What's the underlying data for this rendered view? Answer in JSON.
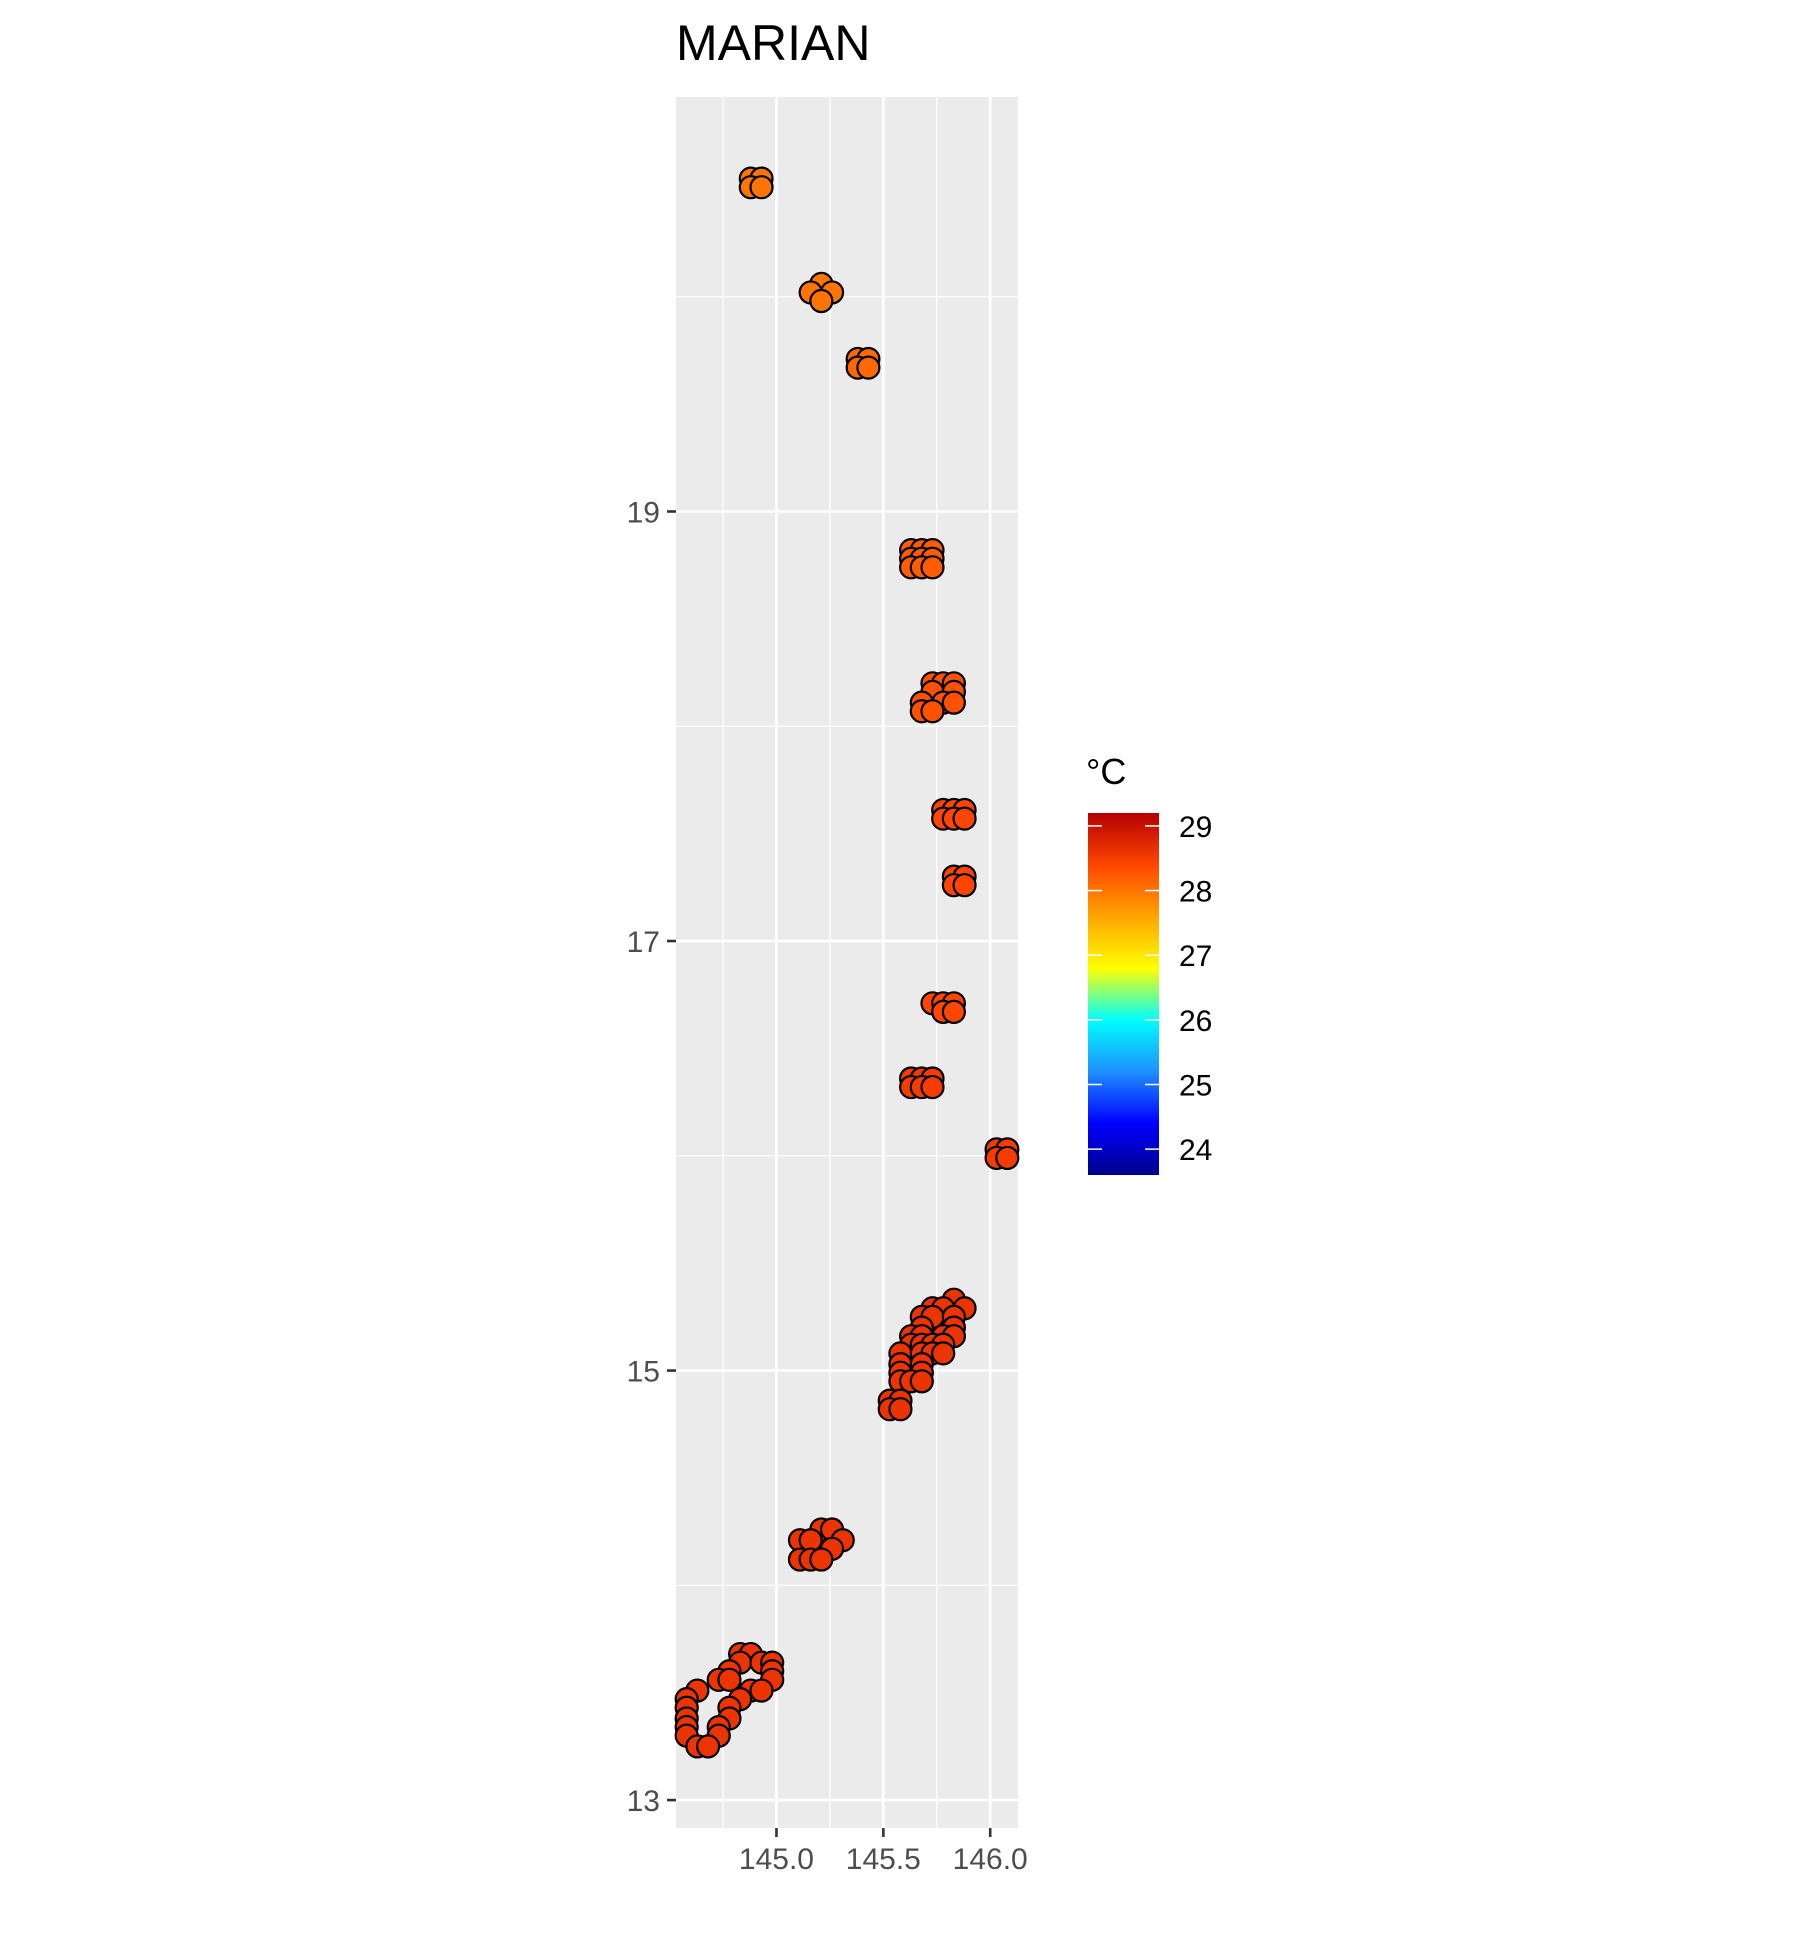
{
  "chart_data": {
    "type": "scatter",
    "title": "MARIAN",
    "xlabel": "",
    "ylabel": "",
    "xlim": [
      144.53,
      146.13
    ],
    "ylim": [
      12.87,
      20.93
    ],
    "x_ticks": [
      145.0,
      145.5,
      146.0
    ],
    "x_tick_labels": [
      "145.0",
      "145.5",
      "146.0"
    ],
    "y_ticks": [
      13,
      15,
      17,
      19
    ],
    "y_tick_labels": [
      "13",
      "15",
      "17",
      "19"
    ],
    "grid": true,
    "legend": {
      "title": "°C",
      "position": "right",
      "min": 23.6,
      "max": 29.2,
      "breaks": [
        24,
        25,
        26,
        27,
        28,
        29
      ],
      "labels": [
        "24",
        "25",
        "26",
        "27",
        "28",
        "29"
      ],
      "colors": [
        "#00008B",
        "#0000FF",
        "#1E90FF",
        "#00FFFF",
        "#FFFF00",
        "#FFA500",
        "#FF4500",
        "#B30000"
      ]
    },
    "points": [
      {
        "x": 144.88,
        "y": 20.55,
        "t": 28.0
      },
      {
        "x": 144.93,
        "y": 20.55,
        "t": 28.0
      },
      {
        "x": 144.88,
        "y": 20.51,
        "t": 28.0
      },
      {
        "x": 144.93,
        "y": 20.51,
        "t": 28.0
      },
      {
        "x": 145.21,
        "y": 20.06,
        "t": 28.0
      },
      {
        "x": 145.16,
        "y": 20.02,
        "t": 28.0
      },
      {
        "x": 145.26,
        "y": 20.02,
        "t": 28.0
      },
      {
        "x": 145.21,
        "y": 19.98,
        "t": 28.0
      },
      {
        "x": 145.38,
        "y": 19.71,
        "t": 28.1
      },
      {
        "x": 145.43,
        "y": 19.71,
        "t": 28.1
      },
      {
        "x": 145.38,
        "y": 19.67,
        "t": 28.1
      },
      {
        "x": 145.43,
        "y": 19.67,
        "t": 28.1
      },
      {
        "x": 145.63,
        "y": 18.82,
        "t": 28.2
      },
      {
        "x": 145.68,
        "y": 18.82,
        "t": 28.2
      },
      {
        "x": 145.73,
        "y": 18.82,
        "t": 28.2
      },
      {
        "x": 145.63,
        "y": 18.78,
        "t": 28.2
      },
      {
        "x": 145.68,
        "y": 18.78,
        "t": 28.2
      },
      {
        "x": 145.73,
        "y": 18.78,
        "t": 28.2
      },
      {
        "x": 145.63,
        "y": 18.74,
        "t": 28.2
      },
      {
        "x": 145.68,
        "y": 18.74,
        "t": 28.2
      },
      {
        "x": 145.73,
        "y": 18.74,
        "t": 28.2
      },
      {
        "x": 145.73,
        "y": 18.2,
        "t": 28.3
      },
      {
        "x": 145.78,
        "y": 18.2,
        "t": 28.3
      },
      {
        "x": 145.83,
        "y": 18.2,
        "t": 28.3
      },
      {
        "x": 145.73,
        "y": 18.16,
        "t": 28.3
      },
      {
        "x": 145.83,
        "y": 18.16,
        "t": 28.3
      },
      {
        "x": 145.68,
        "y": 18.11,
        "t": 28.3
      },
      {
        "x": 145.78,
        "y": 18.11,
        "t": 28.3
      },
      {
        "x": 145.83,
        "y": 18.11,
        "t": 28.3
      },
      {
        "x": 145.68,
        "y": 18.07,
        "t": 28.3
      },
      {
        "x": 145.73,
        "y": 18.07,
        "t": 28.3
      },
      {
        "x": 145.78,
        "y": 17.61,
        "t": 28.4
      },
      {
        "x": 145.83,
        "y": 17.61,
        "t": 28.4
      },
      {
        "x": 145.88,
        "y": 17.61,
        "t": 28.4
      },
      {
        "x": 145.78,
        "y": 17.57,
        "t": 28.4
      },
      {
        "x": 145.83,
        "y": 17.57,
        "t": 28.4
      },
      {
        "x": 145.88,
        "y": 17.57,
        "t": 28.4
      },
      {
        "x": 145.83,
        "y": 17.3,
        "t": 28.4
      },
      {
        "x": 145.88,
        "y": 17.3,
        "t": 28.4
      },
      {
        "x": 145.83,
        "y": 17.26,
        "t": 28.4
      },
      {
        "x": 145.88,
        "y": 17.26,
        "t": 28.4
      },
      {
        "x": 145.73,
        "y": 16.71,
        "t": 28.4
      },
      {
        "x": 145.78,
        "y": 16.71,
        "t": 28.4
      },
      {
        "x": 145.83,
        "y": 16.71,
        "t": 28.4
      },
      {
        "x": 145.78,
        "y": 16.67,
        "t": 28.4
      },
      {
        "x": 145.83,
        "y": 16.67,
        "t": 28.4
      },
      {
        "x": 145.63,
        "y": 16.36,
        "t": 28.5
      },
      {
        "x": 145.68,
        "y": 16.36,
        "t": 28.5
      },
      {
        "x": 145.73,
        "y": 16.36,
        "t": 28.5
      },
      {
        "x": 145.63,
        "y": 16.32,
        "t": 28.5
      },
      {
        "x": 145.68,
        "y": 16.32,
        "t": 28.5
      },
      {
        "x": 145.73,
        "y": 16.32,
        "t": 28.5
      },
      {
        "x": 146.03,
        "y": 16.03,
        "t": 28.5
      },
      {
        "x": 146.08,
        "y": 16.03,
        "t": 28.5
      },
      {
        "x": 146.03,
        "y": 15.99,
        "t": 28.5
      },
      {
        "x": 146.08,
        "y": 15.99,
        "t": 28.5
      },
      {
        "x": 145.83,
        "y": 15.33,
        "t": 28.6
      },
      {
        "x": 145.73,
        "y": 15.29,
        "t": 28.6
      },
      {
        "x": 145.78,
        "y": 15.29,
        "t": 28.6
      },
      {
        "x": 145.88,
        "y": 15.29,
        "t": 28.6
      },
      {
        "x": 145.68,
        "y": 15.25,
        "t": 28.6
      },
      {
        "x": 145.73,
        "y": 15.25,
        "t": 28.6
      },
      {
        "x": 145.83,
        "y": 15.25,
        "t": 28.6
      },
      {
        "x": 145.68,
        "y": 15.2,
        "t": 28.6
      },
      {
        "x": 145.83,
        "y": 15.2,
        "t": 28.6
      },
      {
        "x": 145.63,
        "y": 15.16,
        "t": 28.6
      },
      {
        "x": 145.68,
        "y": 15.16,
        "t": 28.6
      },
      {
        "x": 145.78,
        "y": 15.16,
        "t": 28.6
      },
      {
        "x": 145.83,
        "y": 15.16,
        "t": 28.6
      },
      {
        "x": 145.63,
        "y": 15.12,
        "t": 28.6
      },
      {
        "x": 145.68,
        "y": 15.12,
        "t": 28.6
      },
      {
        "x": 145.73,
        "y": 15.12,
        "t": 28.6
      },
      {
        "x": 145.78,
        "y": 15.12,
        "t": 28.6
      },
      {
        "x": 145.58,
        "y": 15.08,
        "t": 28.6
      },
      {
        "x": 145.68,
        "y": 15.08,
        "t": 28.6
      },
      {
        "x": 145.73,
        "y": 15.08,
        "t": 28.6
      },
      {
        "x": 145.78,
        "y": 15.08,
        "t": 28.6
      },
      {
        "x": 145.58,
        "y": 15.03,
        "t": 28.6
      },
      {
        "x": 145.68,
        "y": 15.03,
        "t": 28.6
      },
      {
        "x": 145.58,
        "y": 14.99,
        "t": 28.6
      },
      {
        "x": 145.68,
        "y": 14.99,
        "t": 28.6
      },
      {
        "x": 145.58,
        "y": 14.95,
        "t": 28.6
      },
      {
        "x": 145.63,
        "y": 14.95,
        "t": 28.6
      },
      {
        "x": 145.68,
        "y": 14.95,
        "t": 28.6
      },
      {
        "x": 145.53,
        "y": 14.86,
        "t": 28.6
      },
      {
        "x": 145.58,
        "y": 14.86,
        "t": 28.6
      },
      {
        "x": 145.53,
        "y": 14.82,
        "t": 28.6
      },
      {
        "x": 145.58,
        "y": 14.82,
        "t": 28.6
      },
      {
        "x": 145.21,
        "y": 14.26,
        "t": 28.6
      },
      {
        "x": 145.26,
        "y": 14.26,
        "t": 28.6
      },
      {
        "x": 145.11,
        "y": 14.21,
        "t": 28.6
      },
      {
        "x": 145.16,
        "y": 14.21,
        "t": 28.6
      },
      {
        "x": 145.31,
        "y": 14.21,
        "t": 28.6
      },
      {
        "x": 145.26,
        "y": 14.17,
        "t": 28.6
      },
      {
        "x": 145.11,
        "y": 14.12,
        "t": 28.6
      },
      {
        "x": 145.16,
        "y": 14.12,
        "t": 28.6
      },
      {
        "x": 145.21,
        "y": 14.12,
        "t": 28.6
      },
      {
        "x": 144.83,
        "y": 13.68,
        "t": 28.6
      },
      {
        "x": 144.88,
        "y": 13.68,
        "t": 28.6
      },
      {
        "x": 144.83,
        "y": 13.64,
        "t": 28.6
      },
      {
        "x": 144.93,
        "y": 13.64,
        "t": 28.6
      },
      {
        "x": 144.98,
        "y": 13.64,
        "t": 28.6
      },
      {
        "x": 144.78,
        "y": 13.6,
        "t": 28.6
      },
      {
        "x": 144.98,
        "y": 13.6,
        "t": 28.6
      },
      {
        "x": 144.73,
        "y": 13.56,
        "t": 28.6
      },
      {
        "x": 144.78,
        "y": 13.56,
        "t": 28.6
      },
      {
        "x": 144.98,
        "y": 13.56,
        "t": 28.6
      },
      {
        "x": 144.63,
        "y": 13.51,
        "t": 28.6
      },
      {
        "x": 144.88,
        "y": 13.51,
        "t": 28.6
      },
      {
        "x": 144.93,
        "y": 13.51,
        "t": 28.6
      },
      {
        "x": 144.58,
        "y": 13.47,
        "t": 28.6
      },
      {
        "x": 144.83,
        "y": 13.47,
        "t": 28.6
      },
      {
        "x": 144.58,
        "y": 13.43,
        "t": 28.6
      },
      {
        "x": 144.78,
        "y": 13.43,
        "t": 28.6
      },
      {
        "x": 144.58,
        "y": 13.38,
        "t": 28.6
      },
      {
        "x": 144.78,
        "y": 13.38,
        "t": 28.6
      },
      {
        "x": 144.58,
        "y": 13.34,
        "t": 28.6
      },
      {
        "x": 144.73,
        "y": 13.34,
        "t": 28.6
      },
      {
        "x": 144.58,
        "y": 13.3,
        "t": 28.6
      },
      {
        "x": 144.73,
        "y": 13.3,
        "t": 28.6
      },
      {
        "x": 144.63,
        "y": 13.25,
        "t": 28.6
      },
      {
        "x": 144.68,
        "y": 13.25,
        "t": 28.6
      }
    ]
  }
}
